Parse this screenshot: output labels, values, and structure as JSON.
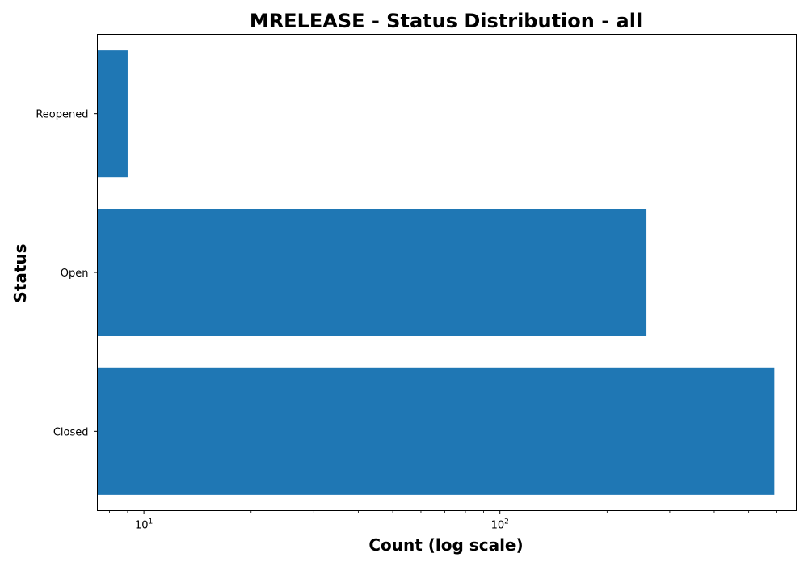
{
  "chart_data": {
    "type": "bar",
    "orientation": "horizontal",
    "title": "MRELEASE - Status Distribution - all",
    "xlabel": "Count (log scale)",
    "ylabel": "Status",
    "x_scale": "log",
    "xlim": [
      7.4,
      680
    ],
    "categories": [
      "Closed",
      "Open",
      "Reopened"
    ],
    "values": [
      590,
      258,
      9
    ],
    "x_ticks": [
      {
        "value": 10,
        "base": "10",
        "exp": "1"
      },
      {
        "value": 100,
        "base": "10",
        "exp": "2"
      }
    ],
    "grid": false,
    "bar_color": "#1f77b4"
  }
}
